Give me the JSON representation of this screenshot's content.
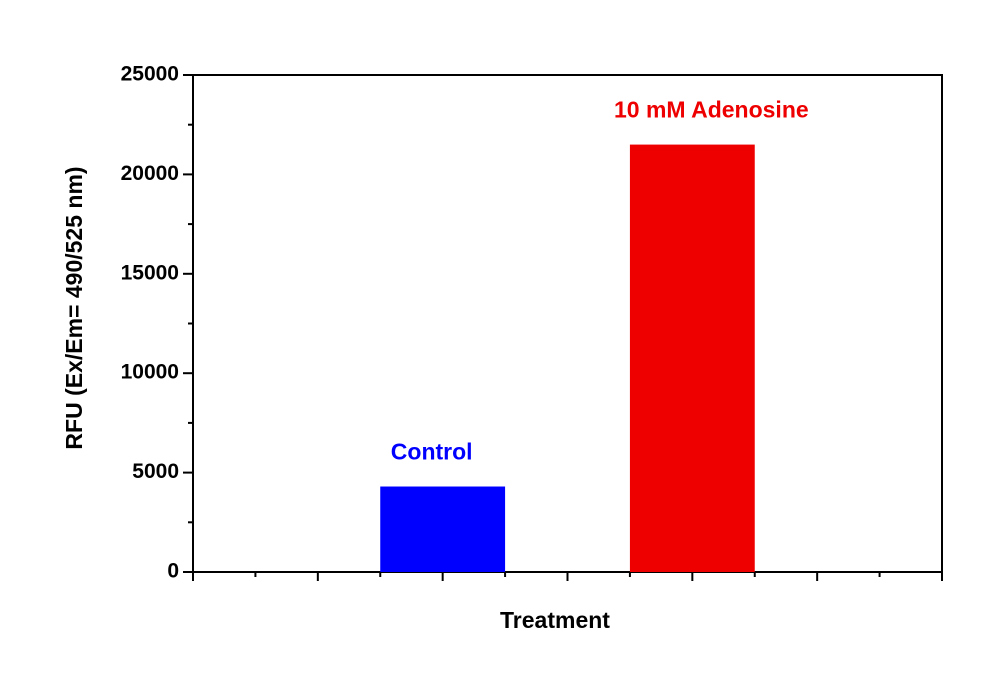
{
  "chart_data": {
    "type": "bar",
    "xlabel": "Treatment",
    "ylabel": "RFU (Ex/Em= 490/525 nm)",
    "categories": [
      "Control",
      "10 mM Adenosine"
    ],
    "values": [
      4300,
      21500
    ],
    "colors": [
      "#0000ff",
      "#ee0000"
    ],
    "ylim": [
      0,
      25000
    ],
    "yticks": [
      0,
      5000,
      10000,
      15000,
      20000,
      25000
    ]
  }
}
